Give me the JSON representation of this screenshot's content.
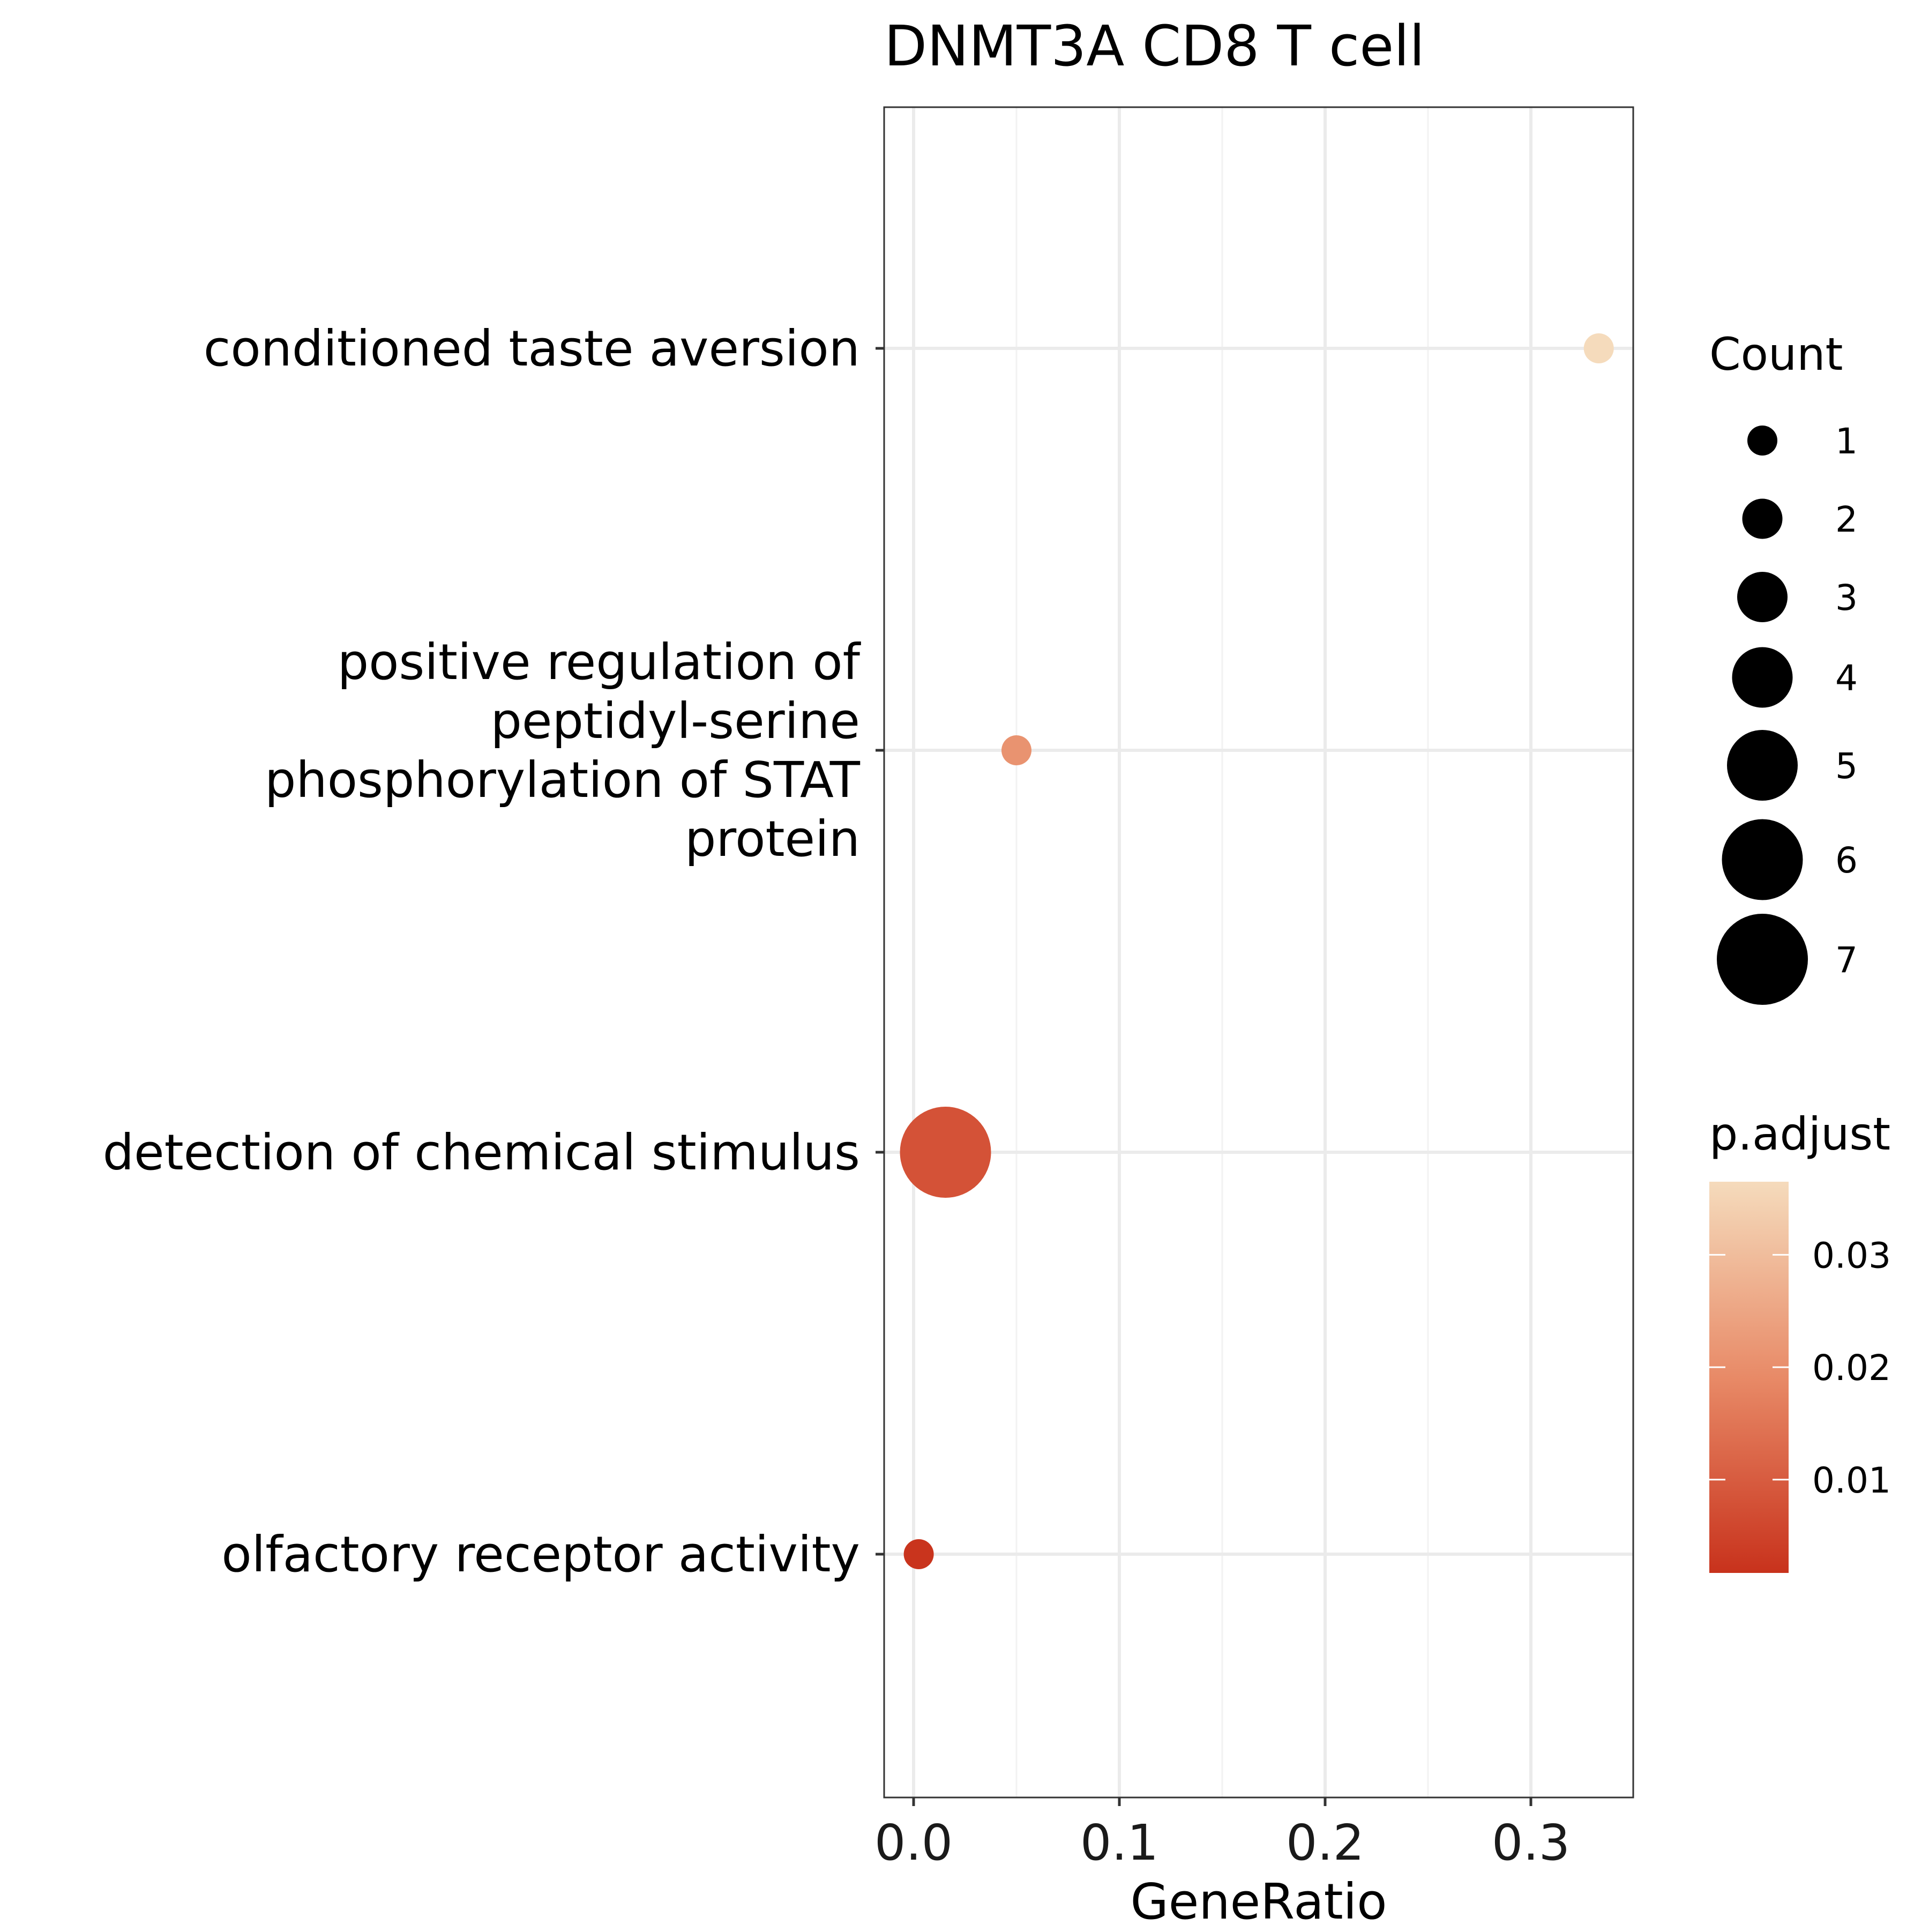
{
  "chart_data": {
    "type": "scatter",
    "title": "DNMT3A CD8 T cell",
    "xlabel": "GeneRatio",
    "ylabel": "",
    "xlim": [
      -0.014,
      0.35
    ],
    "xticks": [
      0.0,
      0.1,
      0.2,
      0.3
    ],
    "xtick_labels": [
      "0.0",
      "0.1",
      "0.2",
      "0.3"
    ],
    "grid": true,
    "categories": [
      "conditioned taste aversion",
      "positive regulation of peptidyl-serine phosphorylation of STAT protein",
      "detection of chemical stimulus",
      "olfactory receptor activity"
    ],
    "category_lines": [
      [
        "conditioned taste aversion"
      ],
      [
        "positive regulation of",
        "peptidyl-serine",
        "phosphorylation of STAT",
        "protein"
      ],
      [
        "detection of chemical stimulus"
      ],
      [
        "olfactory receptor activity"
      ]
    ],
    "points": [
      {
        "term": "conditioned taste aversion",
        "gene_ratio": 0.333,
        "count": 1,
        "p_adjust": 0.037
      },
      {
        "term": "positive regulation of peptidyl-serine phosphorylation of STAT protein",
        "gene_ratio": 0.05,
        "count": 1,
        "p_adjust": 0.021
      },
      {
        "term": "detection of chemical stimulus",
        "gene_ratio": 0.0155,
        "count": 7,
        "p_adjust": 0.008
      },
      {
        "term": "olfactory receptor activity",
        "gene_ratio": 0.0025,
        "count": 1,
        "p_adjust": 0.002
      }
    ],
    "size_legend": {
      "title": "Count",
      "values": [
        1,
        2,
        3,
        4,
        5,
        6,
        7
      ],
      "labels": [
        "1",
        "2",
        "3",
        "4",
        "5",
        "6",
        "7"
      ]
    },
    "color_legend": {
      "title": "p.adjust",
      "range": [
        0.0017,
        0.0365
      ],
      "ticks": [
        0.01,
        0.02,
        0.03
      ],
      "tick_labels": [
        "0.01",
        "0.02",
        "0.03"
      ],
      "low_color": "#c8321c",
      "mid_color": "#e88a67",
      "high_color": "#f5dbbc"
    },
    "colors": {
      "panel_border": "#333333",
      "grid_major": "#ebebeb",
      "grid_minor": "#f2f2f2",
      "legend_key": "#000000"
    }
  }
}
